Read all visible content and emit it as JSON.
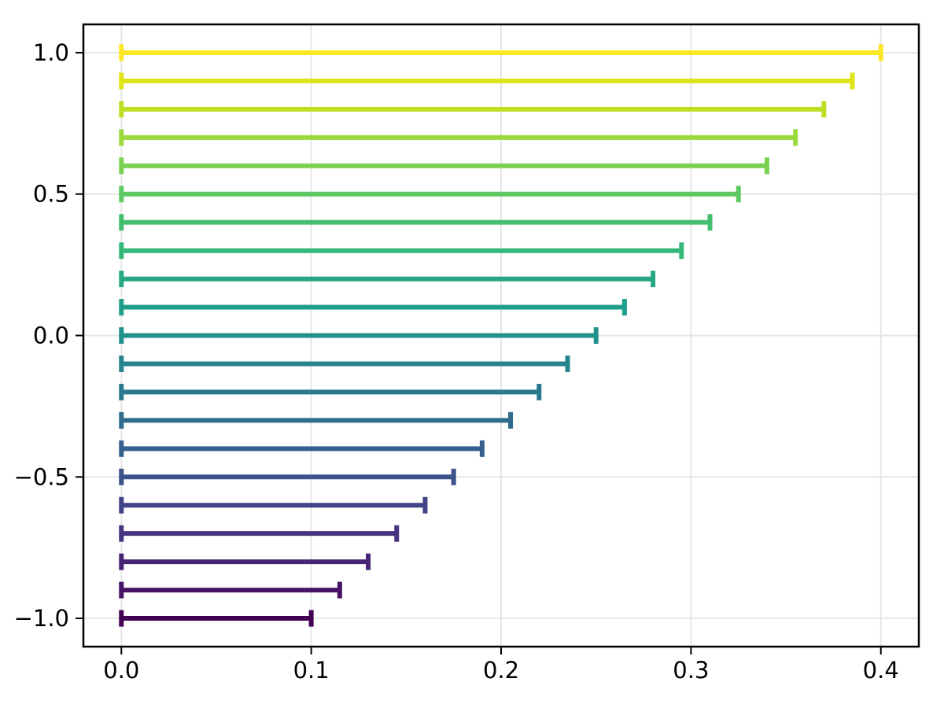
{
  "figure": {
    "background": "#ffffff"
  },
  "chart_data": {
    "type": "bar",
    "subtype": "horizontal-errorbar-lines",
    "title": "",
    "xlabel": "",
    "ylabel": "",
    "grid": true,
    "grid_color": "#e6e6e6",
    "axis_color": "#000000",
    "tick_label_color": "#000000",
    "background": "#ffffff",
    "colormap": "viridis",
    "xlim": [
      -0.02,
      0.42
    ],
    "ylim": [
      -1.1,
      1.1
    ],
    "x_ticks": {
      "values": [
        0.0,
        0.1,
        0.2,
        0.3,
        0.4
      ],
      "labels": [
        "0.0",
        "0.1",
        "0.2",
        "0.3",
        "0.4"
      ]
    },
    "y_ticks": {
      "values": [
        -1.0,
        -0.5,
        0.0,
        0.5,
        1.0
      ],
      "labels": [
        "−1.0",
        "−0.5",
        "0.0",
        "0.5",
        "1.0"
      ]
    },
    "series": [
      {
        "y": 1.0,
        "x_start": 0.0,
        "x_end": 0.4,
        "color": "#fde725"
      },
      {
        "y": 0.9,
        "x_start": 0.0,
        "x_end": 0.385,
        "color": "#dfe318"
      },
      {
        "y": 0.8,
        "x_start": 0.0,
        "x_end": 0.37,
        "color": "#bddf26"
      },
      {
        "y": 0.7,
        "x_start": 0.0,
        "x_end": 0.355,
        "color": "#9bd93c"
      },
      {
        "y": 0.6,
        "x_start": 0.0,
        "x_end": 0.34,
        "color": "#7ad151"
      },
      {
        "y": 0.5,
        "x_start": 0.0,
        "x_end": 0.325,
        "color": "#5ec962"
      },
      {
        "y": 0.4,
        "x_start": 0.0,
        "x_end": 0.31,
        "color": "#44bf70"
      },
      {
        "y": 0.3,
        "x_start": 0.0,
        "x_end": 0.295,
        "color": "#35b779"
      },
      {
        "y": 0.2,
        "x_start": 0.0,
        "x_end": 0.28,
        "color": "#26a885"
      },
      {
        "y": 0.1,
        "x_start": 0.0,
        "x_end": 0.265,
        "color": "#1f9e89"
      },
      {
        "y": 0.0,
        "x_start": 0.0,
        "x_end": 0.25,
        "color": "#21918c"
      },
      {
        "y": -0.1,
        "x_start": 0.0,
        "x_end": 0.235,
        "color": "#25848e"
      },
      {
        "y": -0.2,
        "x_start": 0.0,
        "x_end": 0.22,
        "color": "#2a788e"
      },
      {
        "y": -0.3,
        "x_start": 0.0,
        "x_end": 0.205,
        "color": "#2f6c8e"
      },
      {
        "y": -0.4,
        "x_start": 0.0,
        "x_end": 0.19,
        "color": "#355f8d"
      },
      {
        "y": -0.5,
        "x_start": 0.0,
        "x_end": 0.175,
        "color": "#3b528b"
      },
      {
        "y": -0.6,
        "x_start": 0.0,
        "x_end": 0.16,
        "color": "#414487"
      },
      {
        "y": -0.7,
        "x_start": 0.0,
        "x_end": 0.145,
        "color": "#463480"
      },
      {
        "y": -0.8,
        "x_start": 0.0,
        "x_end": 0.13,
        "color": "#482475"
      },
      {
        "y": -0.9,
        "x_start": 0.0,
        "x_end": 0.115,
        "color": "#471365"
      },
      {
        "y": -1.0,
        "x_start": 0.0,
        "x_end": 0.1,
        "color": "#440154"
      }
    ]
  }
}
